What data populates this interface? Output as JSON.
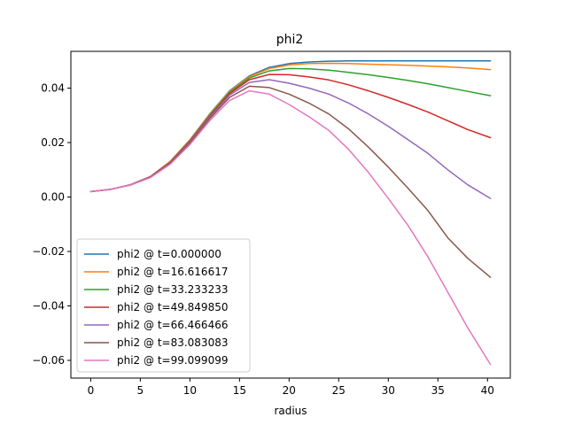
{
  "chart_data": {
    "type": "line",
    "title": "phi2",
    "xlabel": "radius",
    "ylabel": "",
    "xlim": [
      -2.0,
      42.3
    ],
    "ylim": [
      -0.0665,
      0.0535
    ],
    "xticks": [
      0,
      5,
      10,
      15,
      20,
      25,
      30,
      35,
      40
    ],
    "yticks": [
      -0.06,
      -0.04,
      -0.02,
      0.0,
      0.02,
      0.04
    ],
    "ytick_labels": [
      "−0.06",
      "−0.04",
      "−0.02",
      "0.00",
      "0.02",
      "0.04"
    ],
    "grid": false,
    "legend_position": "lower-left",
    "x": [
      0,
      2,
      4,
      6,
      8,
      10,
      12,
      14,
      16,
      18,
      20,
      22,
      24,
      26,
      28,
      30,
      32,
      34,
      36,
      38,
      40.3
    ],
    "series": [
      {
        "name": "phi2 @ t=0.000000",
        "color": "#1f77b4",
        "values": [
          0.002,
          0.0028,
          0.0045,
          0.0075,
          0.013,
          0.021,
          0.0305,
          0.039,
          0.0445,
          0.0476,
          0.049,
          0.0496,
          0.0499,
          0.05,
          0.05,
          0.05,
          0.05,
          0.05,
          0.05,
          0.05,
          0.05
        ]
      },
      {
        "name": "phi2 @ t=16.616617",
        "color": "#ff7f0e",
        "values": [
          0.002,
          0.0028,
          0.0045,
          0.0075,
          0.013,
          0.021,
          0.0303,
          0.0388,
          0.0442,
          0.0472,
          0.0485,
          0.049,
          0.0491,
          0.049,
          0.0488,
          0.0486,
          0.0484,
          0.0481,
          0.0478,
          0.0474,
          0.0468
        ]
      },
      {
        "name": "phi2 @ t=33.233233",
        "color": "#2ca02c",
        "values": [
          0.002,
          0.0028,
          0.0045,
          0.0074,
          0.0128,
          0.0207,
          0.03,
          0.0384,
          0.0437,
          0.0463,
          0.0472,
          0.0471,
          0.0466,
          0.0458,
          0.0449,
          0.0439,
          0.0428,
          0.0416,
          0.0402,
          0.0388,
          0.0372
        ]
      },
      {
        "name": "phi2 @ t=49.849850",
        "color": "#d62728",
        "values": [
          0.002,
          0.0028,
          0.0045,
          0.0074,
          0.0127,
          0.0205,
          0.0297,
          0.038,
          0.0431,
          0.045,
          0.0449,
          0.0441,
          0.043,
          0.0412,
          0.039,
          0.0366,
          0.034,
          0.0312,
          0.028,
          0.0248,
          0.0218
        ]
      },
      {
        "name": "phi2 @ t=66.466466",
        "color": "#9467bd",
        "values": [
          0.002,
          0.0028,
          0.0045,
          0.0073,
          0.0125,
          0.0202,
          0.0293,
          0.0374,
          0.0421,
          0.0431,
          0.0418,
          0.04,
          0.0378,
          0.0345,
          0.0305,
          0.026,
          0.021,
          0.016,
          0.01,
          0.0045,
          -0.0005
        ]
      },
      {
        "name": "phi2 @ t=83.083083",
        "color": "#8c564b",
        "values": [
          0.002,
          0.0028,
          0.0044,
          0.0072,
          0.0123,
          0.0198,
          0.0288,
          0.0366,
          0.0407,
          0.0402,
          0.0378,
          0.0345,
          0.0305,
          0.025,
          0.0183,
          0.011,
          0.0032,
          -0.005,
          -0.015,
          -0.0225,
          -0.0295
        ]
      },
      {
        "name": "phi2 @ t=99.099099",
        "color": "#e377c2",
        "values": [
          0.002,
          0.0028,
          0.0044,
          0.0071,
          0.012,
          0.0193,
          0.028,
          0.0355,
          0.039,
          0.0378,
          0.034,
          0.0295,
          0.0245,
          0.0175,
          0.009,
          -0.0005,
          -0.0105,
          -0.022,
          -0.035,
          -0.048,
          -0.0615
        ]
      }
    ]
  }
}
